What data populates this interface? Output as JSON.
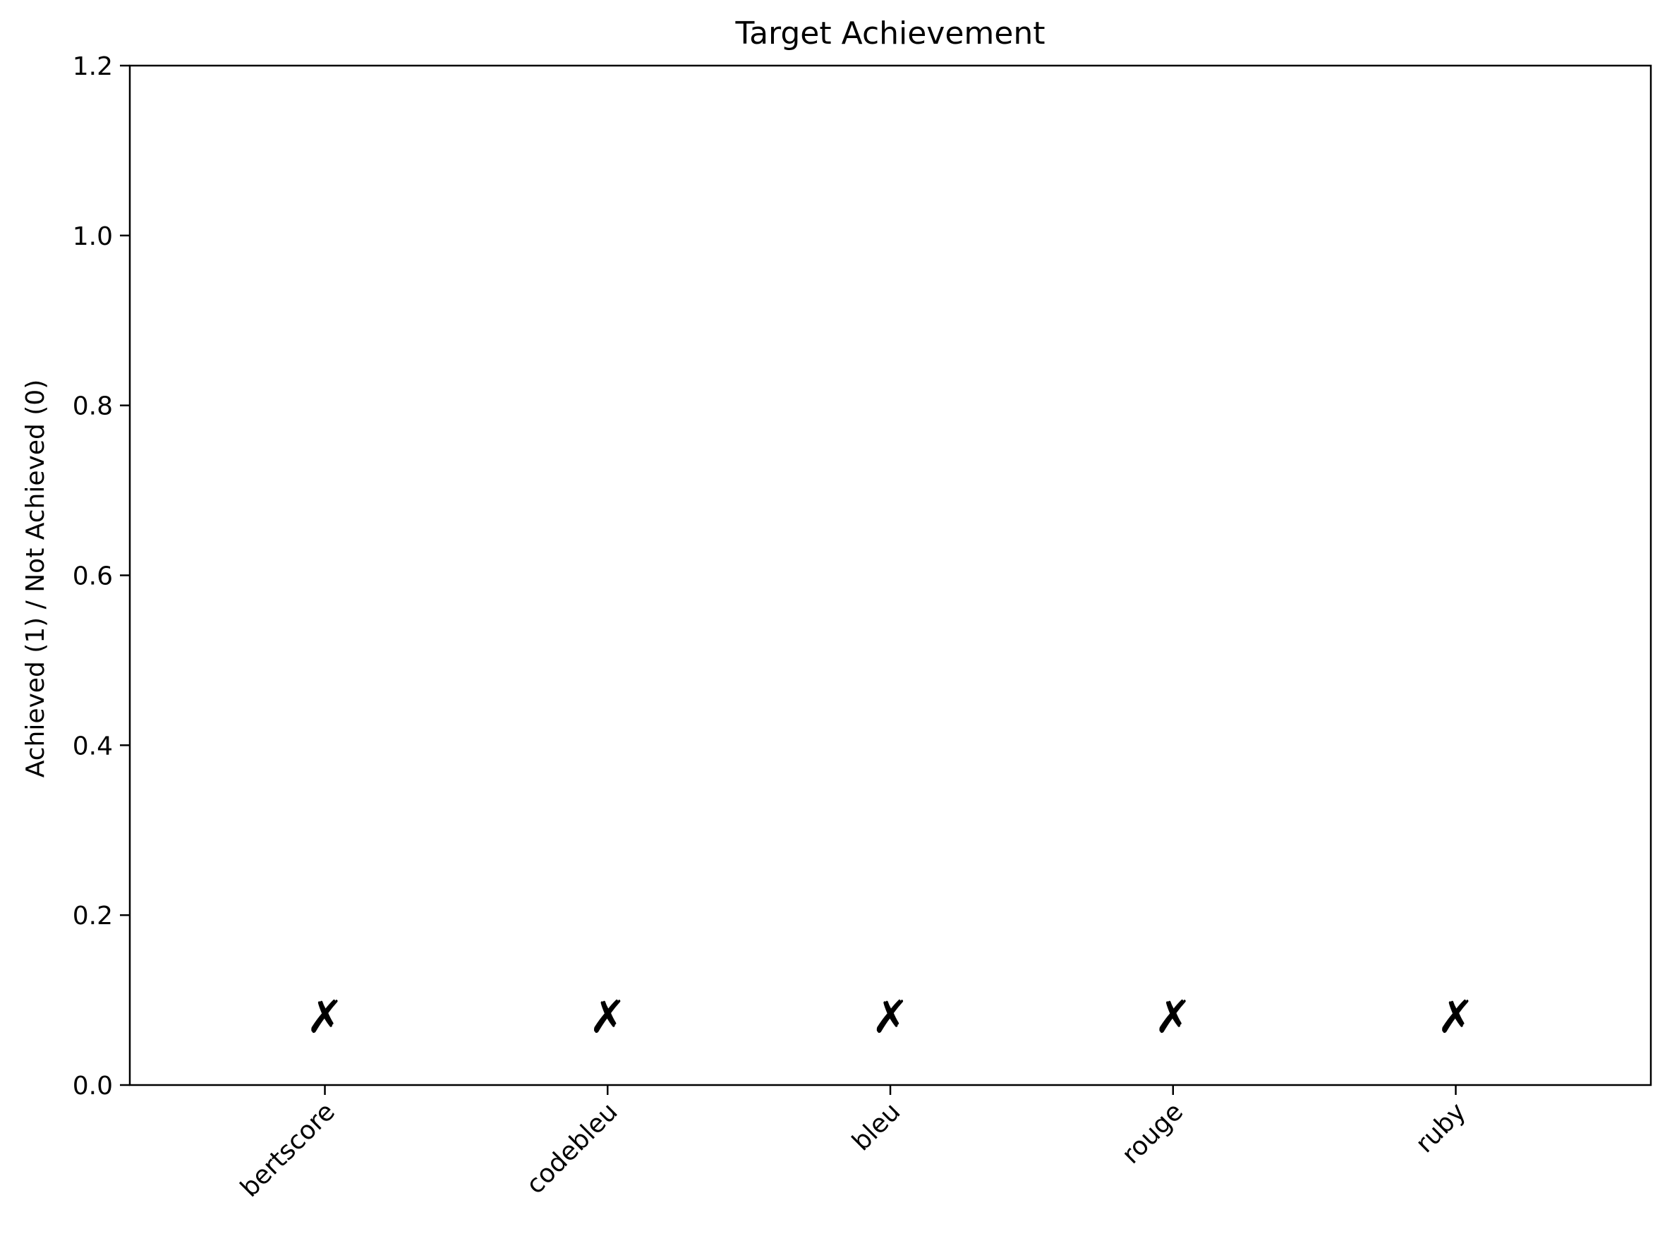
{
  "chart_data": {
    "type": "bar",
    "title": "Target Achievement",
    "xlabel": "",
    "ylabel": "Achieved (1) / Not Achieved (0)",
    "categories": [
      "bertscore",
      "codebleu",
      "bleu",
      "rouge",
      "ruby"
    ],
    "values": [
      0,
      0,
      0,
      0,
      0
    ],
    "ylim": [
      0,
      1.2
    ],
    "yticks": [
      "0.0",
      "0.2",
      "0.4",
      "0.6",
      "0.8",
      "1.0",
      "1.2"
    ],
    "annotations": [
      "✗",
      "✗",
      "✗",
      "✗",
      "✗"
    ],
    "annotation_y": 0.08,
    "grid": false,
    "legend": "none"
  },
  "colors": {
    "axis": "#000000",
    "background": "#ffffff",
    "marker": "#000000"
  }
}
